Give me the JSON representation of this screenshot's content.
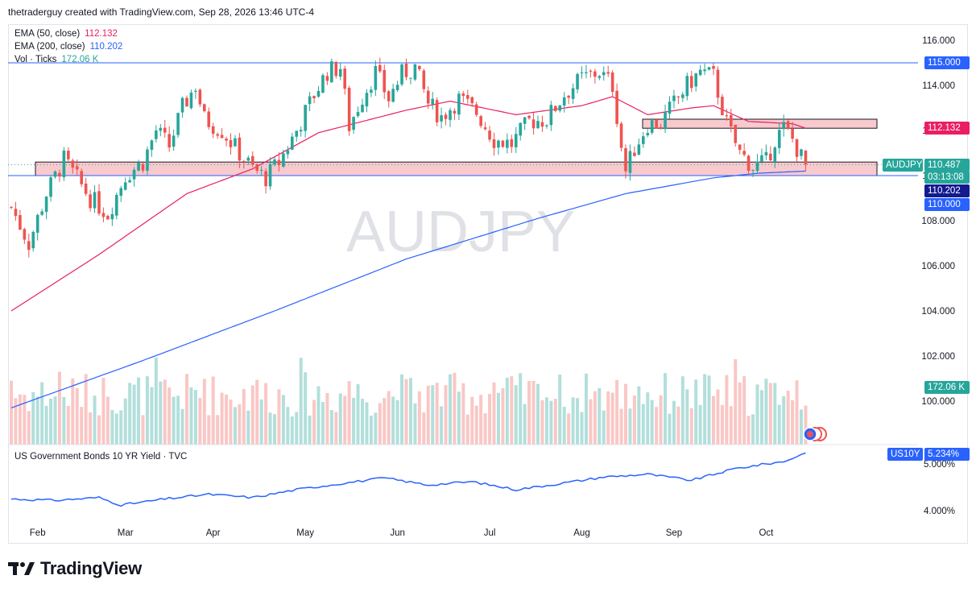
{
  "header": {
    "attribution": "thetraderguy created with TradingView.com, Sep 28, 2026 13:46 UTC-4"
  },
  "watermark": "AUDJPY",
  "legend": {
    "ema50": {
      "label": "EMA (50, close)",
      "value": "112.132",
      "color": "#e91e63"
    },
    "ema200": {
      "label": "EMA (200, close)",
      "value": "110.202",
      "color": "#2962ff"
    },
    "vol": {
      "label": "Vol · Ticks",
      "value": "172.06 K",
      "color": "#26a69a"
    },
    "us10y": {
      "label": "US Government Bonds 10 YR Yield · TVC"
    }
  },
  "price_scale": {
    "ticks": [
      "116.000",
      "114.000",
      "112.000",
      "110.000",
      "108.000",
      "106.000",
      "104.000",
      "102.000",
      "100.000"
    ],
    "badges": {
      "level115": "115.000",
      "ema50": "112.132",
      "symbol": "AUDJPY",
      "last_price": "110.487",
      "countdown": "03:13:08",
      "ema200": "110.202",
      "level110": "110.000",
      "volume": "172.06 K"
    }
  },
  "yield_scale": {
    "ticks": [
      "5.000%",
      "4.000%"
    ],
    "badge_symbol": "US10Y",
    "badge_value": "5.234%"
  },
  "time_axis": [
    "Feb",
    "Mar",
    "Apr",
    "May",
    "Jun",
    "Jul",
    "Aug",
    "Sep",
    "Oct"
  ],
  "logo": {
    "text": "TradingView"
  },
  "colors": {
    "up": "#26a69a",
    "down": "#ef5350",
    "ema50": "#e91e63",
    "ema200": "#2962ff",
    "level": "#2962ff",
    "zone_fill": "#f8c9cd",
    "yield": "#2962ff"
  },
  "chart_data": {
    "type": "candlestick",
    "symbol": "AUDJPY",
    "price_range": [
      99,
      117
    ],
    "horizontal_levels": [
      115.0,
      110.0
    ],
    "zones": [
      {
        "from": 110.0,
        "to": 110.6
      },
      {
        "from": 112.1,
        "to": 112.5
      }
    ],
    "waypoints": [
      {
        "t": 0,
        "p": 108.6
      },
      {
        "t": 4,
        "p": 107.0
      },
      {
        "t": 8,
        "p": 109.2
      },
      {
        "t": 12,
        "p": 110.7
      },
      {
        "t": 18,
        "p": 109.0
      },
      {
        "t": 22,
        "p": 108.3
      },
      {
        "t": 26,
        "p": 110.0
      },
      {
        "t": 30,
        "p": 110.6
      },
      {
        "t": 33,
        "p": 112.0
      },
      {
        "t": 36,
        "p": 111.3
      },
      {
        "t": 39,
        "p": 113.0
      },
      {
        "t": 42,
        "p": 114.0
      },
      {
        "t": 44,
        "p": 112.5
      },
      {
        "t": 48,
        "p": 112.0
      },
      {
        "t": 52,
        "p": 111.0
      },
      {
        "t": 55,
        "p": 110.3
      },
      {
        "t": 58,
        "p": 109.9
      },
      {
        "t": 61,
        "p": 110.6
      },
      {
        "t": 65,
        "p": 112.0
      },
      {
        "t": 69,
        "p": 113.6
      },
      {
        "t": 72,
        "p": 114.6
      },
      {
        "t": 75,
        "p": 114.8
      },
      {
        "t": 77,
        "p": 112.2
      },
      {
        "t": 80,
        "p": 113.5
      },
      {
        "t": 83,
        "p": 114.6
      },
      {
        "t": 86,
        "p": 113.4
      },
      {
        "t": 89,
        "p": 114.5
      },
      {
        "t": 92,
        "p": 114.8
      },
      {
        "t": 95,
        "p": 113.2
      },
      {
        "t": 98,
        "p": 112.6
      },
      {
        "t": 102,
        "p": 113.4
      },
      {
        "t": 106,
        "p": 112.8
      },
      {
        "t": 110,
        "p": 111.6
      },
      {
        "t": 114,
        "p": 111.4
      },
      {
        "t": 118,
        "p": 112.4
      },
      {
        "t": 122,
        "p": 112.5
      },
      {
        "t": 126,
        "p": 113.6
      },
      {
        "t": 130,
        "p": 114.3
      },
      {
        "t": 134,
        "p": 114.6
      },
      {
        "t": 137,
        "p": 114.0
      },
      {
        "t": 139,
        "p": 111.3
      },
      {
        "t": 140,
        "p": 110.2
      },
      {
        "t": 142,
        "p": 111.2
      },
      {
        "t": 145,
        "p": 112.3
      },
      {
        "t": 148,
        "p": 112.3
      },
      {
        "t": 151,
        "p": 113.2
      },
      {
        "t": 154,
        "p": 114.0
      },
      {
        "t": 157,
        "p": 114.6
      },
      {
        "t": 160,
        "p": 114.4
      },
      {
        "t": 163,
        "p": 112.3
      },
      {
        "t": 166,
        "p": 111.0
      },
      {
        "t": 169,
        "p": 110.4
      },
      {
        "t": 172,
        "p": 110.6
      },
      {
        "t": 174,
        "p": 111.6
      },
      {
        "t": 176,
        "p": 112.1
      },
      {
        "t": 178,
        "p": 111.6
      },
      {
        "t": 180,
        "p": 110.8
      },
      {
        "t": 181,
        "p": 110.5
      }
    ],
    "ema50_series": [
      {
        "t": 0,
        "p": 104.0
      },
      {
        "t": 20,
        "p": 106.5
      },
      {
        "t": 40,
        "p": 109.2
      },
      {
        "t": 55,
        "p": 110.3
      },
      {
        "t": 70,
        "p": 111.9
      },
      {
        "t": 90,
        "p": 112.9
      },
      {
        "t": 100,
        "p": 113.3
      },
      {
        "t": 115,
        "p": 112.7
      },
      {
        "t": 130,
        "p": 113.1
      },
      {
        "t": 137,
        "p": 113.5
      },
      {
        "t": 145,
        "p": 112.7
      },
      {
        "t": 155,
        "p": 113.0
      },
      {
        "t": 160,
        "p": 113.1
      },
      {
        "t": 168,
        "p": 112.4
      },
      {
        "t": 178,
        "p": 112.3
      },
      {
        "t": 181,
        "p": 112.1
      }
    ],
    "ema200_series": [
      {
        "t": 0,
        "p": 99.7
      },
      {
        "t": 30,
        "p": 101.8
      },
      {
        "t": 60,
        "p": 104.0
      },
      {
        "t": 90,
        "p": 106.3
      },
      {
        "t": 120,
        "p": 108.1
      },
      {
        "t": 140,
        "p": 109.2
      },
      {
        "t": 160,
        "p": 109.9
      },
      {
        "t": 170,
        "p": 110.1
      },
      {
        "t": 181,
        "p": 110.2
      }
    ],
    "yield_series": [
      {
        "t": 0,
        "p": 4.25
      },
      {
        "t": 10,
        "p": 4.22
      },
      {
        "t": 20,
        "p": 4.28
      },
      {
        "t": 25,
        "p": 4.12
      },
      {
        "t": 35,
        "p": 4.25
      },
      {
        "t": 45,
        "p": 4.35
      },
      {
        "t": 55,
        "p": 4.28
      },
      {
        "t": 65,
        "p": 4.45
      },
      {
        "t": 75,
        "p": 4.58
      },
      {
        "t": 85,
        "p": 4.7
      },
      {
        "t": 95,
        "p": 4.55
      },
      {
        "t": 105,
        "p": 4.62
      },
      {
        "t": 115,
        "p": 4.45
      },
      {
        "t": 125,
        "p": 4.58
      },
      {
        "t": 135,
        "p": 4.72
      },
      {
        "t": 145,
        "p": 4.78
      },
      {
        "t": 155,
        "p": 4.65
      },
      {
        "t": 165,
        "p": 4.9
      },
      {
        "t": 172,
        "p": 5.0
      },
      {
        "t": 176,
        "p": 5.05
      },
      {
        "t": 181,
        "p": 5.234
      }
    ],
    "yield_range": [
      3.8,
      5.4
    ],
    "month_starts": [
      {
        "label": "Feb",
        "t": 6
      },
      {
        "label": "Mar",
        "t": 26
      },
      {
        "label": "Apr",
        "t": 46
      },
      {
        "label": "May",
        "t": 67
      },
      {
        "label": "Jun",
        "t": 88
      },
      {
        "label": "Jul",
        "t": 109
      },
      {
        "label": "Aug",
        "t": 130
      },
      {
        "label": "Sep",
        "t": 151
      },
      {
        "label": "Oct",
        "t": 172
      }
    ],
    "bar_count": 182,
    "last_volume": "172.06 K"
  }
}
